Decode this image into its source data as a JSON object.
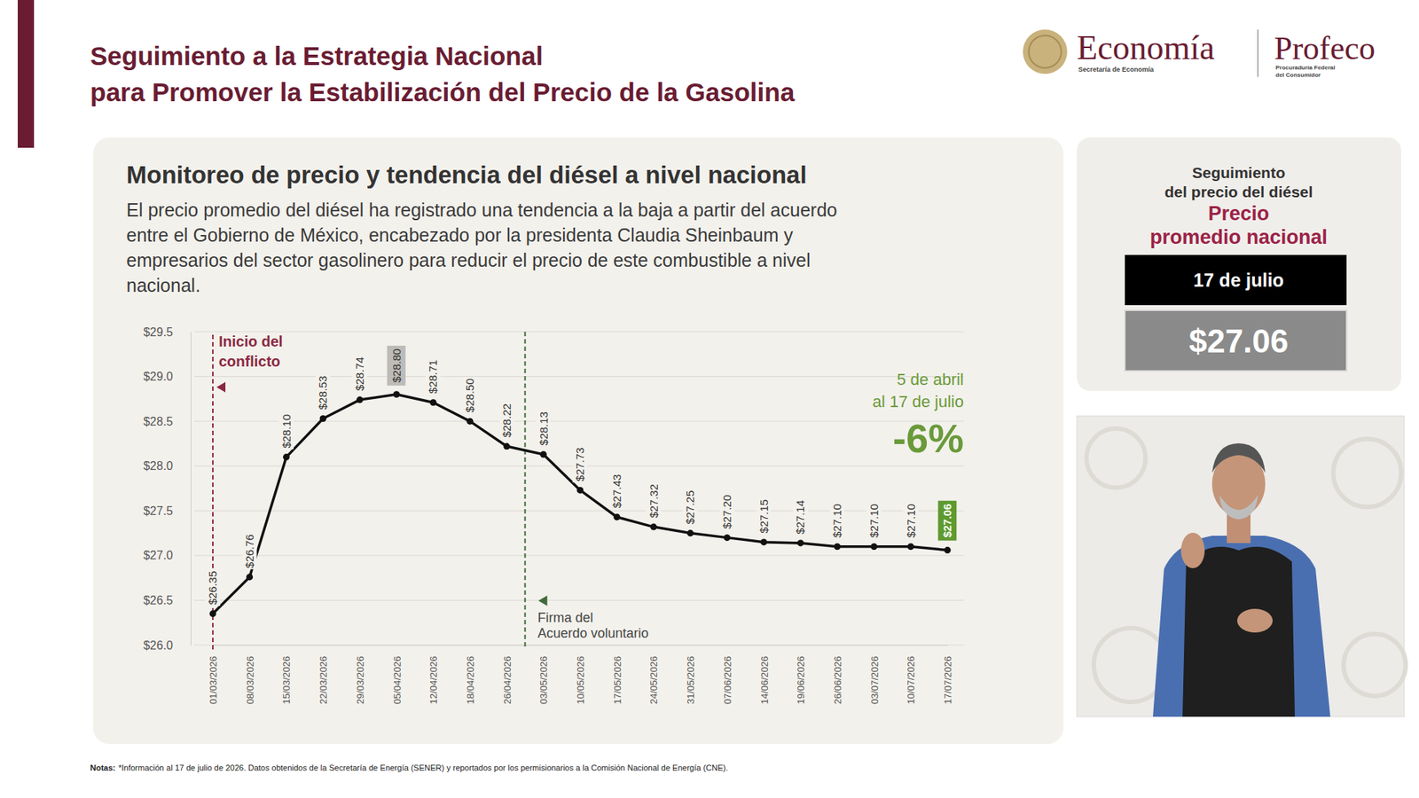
{
  "header": {
    "title": [
      "Seguimiento a la Estrategia Nacional",
      "para Promover la Estabilización del Precio de la Gasolina"
    ],
    "logos": {
      "economia": "Economía",
      "economia_sub": "Secretaría de Economía",
      "profeco": "Profeco",
      "profeco_sub": [
        "Procuraduría Federal",
        "del Consumidor"
      ]
    }
  },
  "chart_data": {
    "type": "line",
    "title": "Monitoreo de precio y tendencia del diésel a nivel nacional",
    "subtitle": [
      "El precio promedio del diésel ha registrado una tendencia a la baja a partir del acuerdo",
      "entre el Gobierno de México, encabezado por la presidenta Claudia Sheinbaum y",
      "empresarios del sector gasolinero para reducir el precio de este combustible a nivel",
      "nacional."
    ],
    "categories": [
      "01/03/2026",
      "08/03/2026",
      "15/03/2026",
      "22/03/2026",
      "29/03/2026",
      "05/04/2026",
      "12/04/2026",
      "18/04/2026",
      "26/04/2026",
      "03/05/2026",
      "10/05/2026",
      "17/05/2026",
      "24/05/2026",
      "31/05/2026",
      "07/06/2026",
      "14/06/2026",
      "19/06/2026",
      "26/06/2026",
      "03/07/2026",
      "10/07/2026",
      "17/07/2026"
    ],
    "values": [
      26.35,
      26.76,
      28.1,
      28.53,
      28.74,
      28.8,
      28.71,
      28.5,
      28.22,
      28.13,
      27.73,
      27.43,
      27.32,
      27.25,
      27.2,
      27.15,
      27.14,
      27.1,
      27.1,
      27.1,
      27.06
    ],
    "value_labels": [
      "$26.35",
      "$26.76",
      "$28.10",
      "$28.53",
      "$28.74",
      "$28.80",
      "$28.71",
      "$28.50",
      "$28.22",
      "$28.13",
      "$27.73",
      "$27.43",
      "$27.32",
      "$27.25",
      "$27.20",
      "$27.15",
      "$27.14",
      "$27.10",
      "$27.10",
      "$27.10",
      "$27.06"
    ],
    "color": "#111111",
    "marker": "circle",
    "ylim": [
      26,
      29.5
    ],
    "yticks": [
      {
        "value": 26,
        "label": "$26.0"
      },
      {
        "value": 26.5,
        "label": "$26.5"
      },
      {
        "value": 27,
        "label": "$27.0"
      },
      {
        "value": 27.5,
        "label": "$27.5"
      },
      {
        "value": 28,
        "label": "$28.0"
      },
      {
        "value": 28.5,
        "label": "$28.5"
      },
      {
        "value": 29,
        "label": "$29.0"
      },
      {
        "value": 29.5,
        "label": "$29.5"
      }
    ],
    "grid": true,
    "data_labels": true,
    "annotations": [
      {
        "text": [
          "Inicio del",
          "conflicto"
        ],
        "x": 0,
        "color": "#8b2942"
      },
      {
        "text": [
          "Firma del",
          "Acuerdo voluntario"
        ],
        "x": 8.5,
        "color": "#3f6b3a"
      },
      {
        "text": [
          "5 de abril",
          "al 17 de julio"
        ],
        "label": "-6%",
        "color": "#6a9a3a"
      }
    ]
  },
  "side_panel": {
    "heading": [
      "Seguimiento",
      "del precio del diésel"
    ],
    "highlight": [
      "Precio",
      "promedio nacional"
    ],
    "date": "17 de julio",
    "price": "$27.06"
  },
  "notes": {
    "label": "Notas:",
    "text": "*Información al 17 de julio de 2026. Datos obtenidos de la Secretaría de Energía (SENER) y reportados por los permisionarios a la Comisión Nacional de Energía (CNE)."
  }
}
